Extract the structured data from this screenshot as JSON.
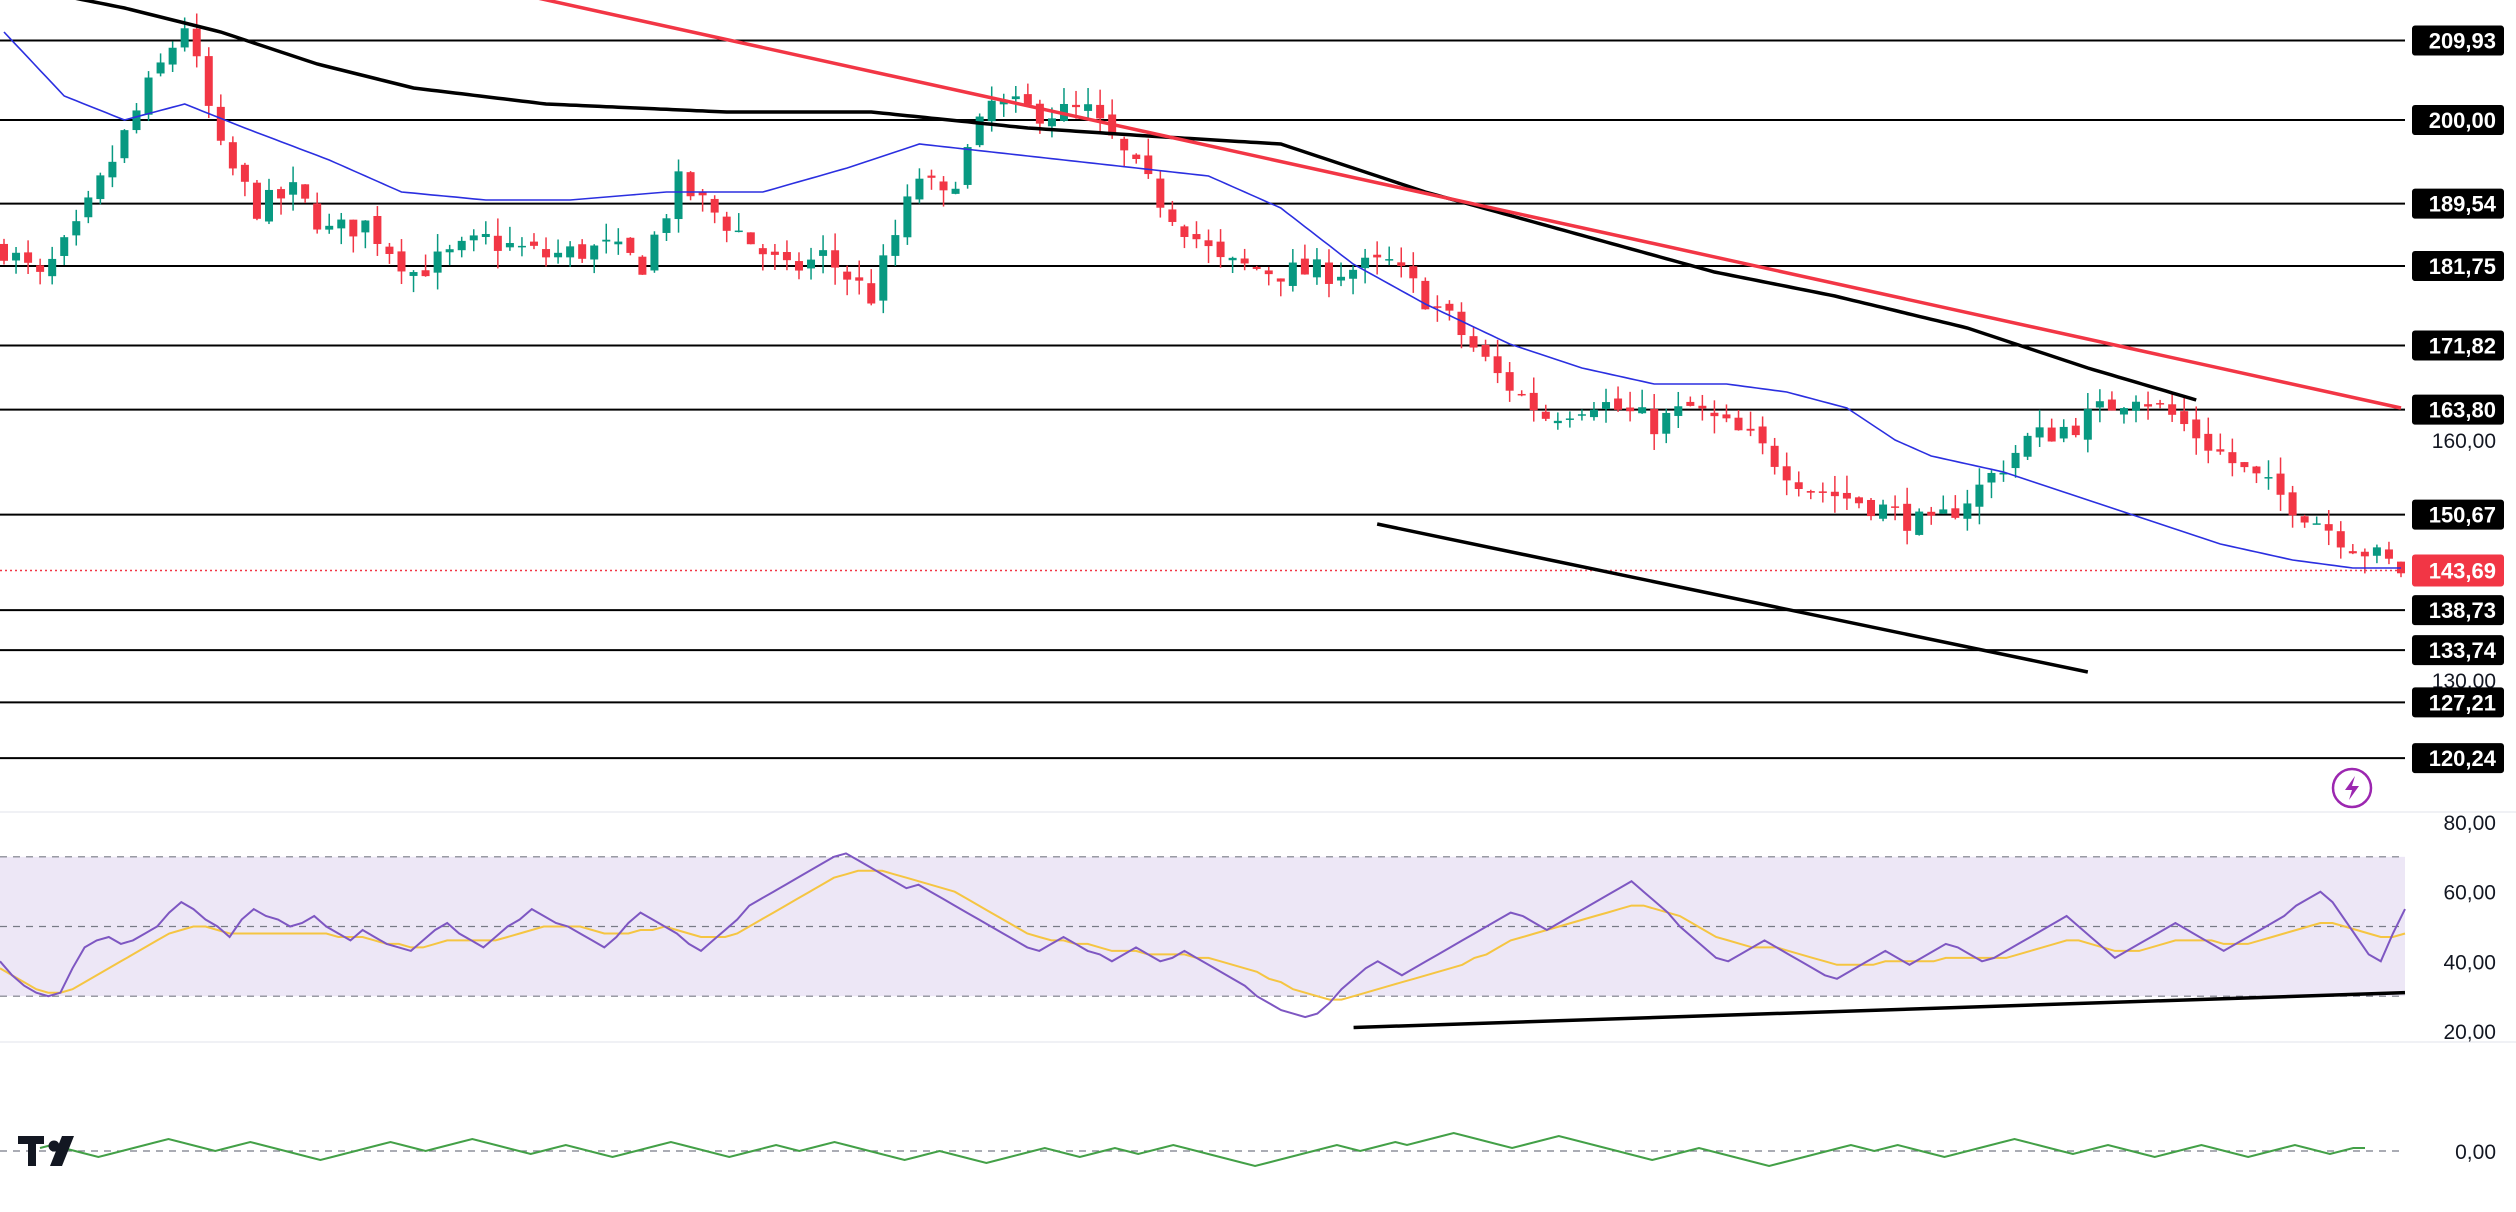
{
  "colors": {
    "up": "#089981",
    "down": "#f23645",
    "ema50": "#2b2fe0",
    "ema200": "#000000",
    "resistance": "#f23645",
    "hline": "#000000",
    "rsi_line": "#7e57c2",
    "rsi_ma": "#f5c542",
    "rsi_band": "#ede7f6",
    "osc_line": "#43a047",
    "current_price_bg": "#f23645",
    "label_bg": "#000000",
    "label_text": "#ffffff",
    "axis_text": "#131722"
  },
  "icons": {
    "logo": "tradingview-logo-icon",
    "alert": "lightning-icon"
  },
  "chart_data": [
    {
      "type": "candlestick",
      "panel": "price",
      "ylim": [
        115,
        215
      ],
      "x_count": 200,
      "price_ticks": [
        "160,00",
        "130,00",
        "80,00"
      ],
      "current_price": {
        "value": 143.69,
        "label": "143,69"
      },
      "levels": [
        {
          "value": 209.93,
          "label": "209,93"
        },
        {
          "value": 200.0,
          "label": "200,00"
        },
        {
          "value": 189.54,
          "label": "189,54"
        },
        {
          "value": 181.75,
          "label": "181,75"
        },
        {
          "value": 171.82,
          "label": "171,82"
        },
        {
          "value": 163.8,
          "label": "163,80"
        },
        {
          "value": 150.67,
          "label": "150,67"
        },
        {
          "value": 138.73,
          "label": "138,73"
        },
        {
          "value": 133.74,
          "label": "133,74"
        },
        {
          "value": 127.21,
          "label": "127,21"
        },
        {
          "value": 120.24,
          "label": "120,24"
        }
      ],
      "close_path": [
        [
          0,
          184
        ],
        [
          3,
          180
        ],
        [
          6,
          186
        ],
        [
          9,
          195
        ],
        [
          12,
          204
        ],
        [
          15,
          212
        ],
        [
          18,
          196
        ],
        [
          21,
          189
        ],
        [
          24,
          191
        ],
        [
          27,
          186
        ],
        [
          30,
          187
        ],
        [
          34,
          181
        ],
        [
          40,
          185
        ],
        [
          45,
          183
        ],
        [
          50,
          184
        ],
        [
          53,
          182
        ],
        [
          56,
          192
        ],
        [
          61,
          186
        ],
        [
          65,
          181
        ],
        [
          68,
          183
        ],
        [
          72,
          178
        ],
        [
          76,
          193
        ],
        [
          78,
          190
        ],
        [
          82,
          202
        ],
        [
          86,
          201
        ],
        [
          90,
          201
        ],
        [
          96,
          190
        ],
        [
          101,
          182
        ],
        [
          106,
          181
        ],
        [
          110,
          181
        ],
        [
          115,
          182
        ],
        [
          120,
          175
        ],
        [
          124,
          168
        ],
        [
          128,
          163
        ],
        [
          132,
          165
        ],
        [
          137,
          162
        ],
        [
          140,
          164
        ],
        [
          145,
          160
        ],
        [
          150,
          154
        ],
        [
          155,
          152
        ],
        [
          160,
          149
        ],
        [
          164,
          154
        ],
        [
          168,
          160
        ],
        [
          172,
          162
        ],
        [
          177,
          166
        ],
        [
          180,
          163
        ],
        [
          186,
          156
        ],
        [
          191,
          151
        ],
        [
          195,
          147
        ],
        [
          199,
          143.69
        ]
      ],
      "ema50_path": [
        [
          0,
          211
        ],
        [
          5,
          203
        ],
        [
          10,
          200
        ],
        [
          15,
          202
        ],
        [
          20,
          199
        ],
        [
          27,
          195
        ],
        [
          33,
          191
        ],
        [
          40,
          190
        ],
        [
          47,
          190
        ],
        [
          55,
          191
        ],
        [
          63,
          191
        ],
        [
          70,
          194
        ],
        [
          76,
          197
        ],
        [
          82,
          196
        ],
        [
          88,
          195
        ],
        [
          94,
          194
        ],
        [
          100,
          193
        ],
        [
          106,
          189
        ],
        [
          112,
          182
        ],
        [
          118,
          177
        ],
        [
          125,
          172
        ],
        [
          131,
          169
        ],
        [
          137,
          167
        ],
        [
          143,
          167
        ],
        [
          148,
          166
        ],
        [
          153,
          164
        ],
        [
          157,
          160
        ],
        [
          160,
          158
        ],
        [
          166,
          156
        ],
        [
          172,
          153
        ],
        [
          178,
          150
        ],
        [
          184,
          147
        ],
        [
          190,
          145
        ],
        [
          195,
          144
        ],
        [
          199,
          144
        ]
      ],
      "ema200_path": [
        [
          0,
          217
        ],
        [
          10,
          214
        ],
        [
          18,
          211
        ],
        [
          26,
          207
        ],
        [
          34,
          204
        ],
        [
          45,
          202
        ],
        [
          60,
          201
        ],
        [
          72,
          201
        ],
        [
          85,
          199
        ],
        [
          95,
          198
        ],
        [
          106,
          197
        ],
        [
          118,
          191
        ],
        [
          130,
          186
        ],
        [
          142,
          181
        ],
        [
          152,
          178
        ],
        [
          163,
          174
        ],
        [
          173,
          169
        ],
        [
          182,
          165
        ]
      ],
      "resistance_trend": [
        [
          36,
          218
        ],
        [
          199,
          164
        ]
      ],
      "support_trend": [
        [
          114,
          149.5
        ],
        [
          173,
          131
        ]
      ]
    },
    {
      "type": "line",
      "panel": "rsi",
      "ylim": [
        20,
        80
      ],
      "ticks": [
        "60,00",
        "40,00",
        "20,00"
      ],
      "band": [
        30,
        70
      ],
      "series": [
        {
          "key": "rsi",
          "values": [
            40,
            36,
            33,
            31,
            30,
            31,
            38,
            44,
            46,
            47,
            45,
            46,
            48,
            50,
            54,
            57,
            55,
            52,
            50,
            47,
            52,
            55,
            53,
            52,
            50,
            51,
            53,
            50,
            48,
            46,
            49,
            47,
            45,
            44,
            43,
            46,
            49,
            51,
            48,
            46,
            44,
            47,
            50,
            52,
            55,
            53,
            51,
            50,
            48,
            46,
            44,
            47,
            51,
            54,
            52,
            50,
            48,
            45,
            43,
            46,
            49,
            52,
            56,
            58,
            60,
            62,
            64,
            66,
            68,
            70,
            71,
            69,
            67,
            65,
            63,
            61,
            62,
            60,
            58,
            56,
            54,
            52,
            50,
            48,
            46,
            44,
            43,
            45,
            47,
            45,
            43,
            42,
            40,
            42,
            44,
            42,
            40,
            41,
            43,
            41,
            39,
            37,
            35,
            33,
            30,
            28,
            26,
            25,
            24,
            25,
            28,
            32,
            35,
            38,
            40,
            38,
            36,
            38,
            40,
            42,
            44,
            46,
            48,
            50,
            52,
            54,
            53,
            51,
            49,
            51,
            53,
            55,
            57,
            59,
            61,
            63,
            60,
            57,
            54,
            50,
            47,
            44,
            41,
            40,
            42,
            44,
            46,
            44,
            42,
            40,
            38,
            36,
            35,
            37,
            39,
            41,
            43,
            41,
            39,
            41,
            43,
            45,
            44,
            42,
            40,
            41,
            43,
            45,
            47,
            49,
            51,
            53,
            50,
            47,
            44,
            41,
            43,
            45,
            47,
            49,
            51,
            49,
            47,
            45,
            43,
            45,
            47,
            49,
            51,
            53,
            56,
            58,
            60,
            57,
            52,
            47,
            42,
            40,
            48,
            55
          ]
        },
        {
          "key": "rsi_ma",
          "values": [
            38,
            36,
            34,
            32,
            31,
            31,
            32,
            34,
            36,
            38,
            40,
            42,
            44,
            46,
            48,
            49,
            50,
            50,
            49,
            48,
            48,
            48,
            48,
            48,
            48,
            48,
            48,
            48,
            47,
            47,
            47,
            46,
            45,
            45,
            44,
            44,
            45,
            46,
            46,
            46,
            46,
            46,
            47,
            48,
            49,
            50,
            50,
            50,
            50,
            49,
            48,
            48,
            48,
            49,
            49,
            50,
            49,
            48,
            47,
            47,
            47,
            48,
            50,
            52,
            54,
            56,
            58,
            60,
            62,
            64,
            65,
            66,
            66,
            66,
            65,
            64,
            63,
            62,
            61,
            60,
            58,
            56,
            54,
            52,
            50,
            48,
            47,
            46,
            46,
            45,
            45,
            44,
            43,
            43,
            43,
            42,
            42,
            42,
            42,
            41,
            41,
            40,
            39,
            38,
            37,
            35,
            34,
            32,
            31,
            30,
            29,
            29,
            30,
            31,
            32,
            33,
            34,
            35,
            36,
            37,
            38,
            39,
            41,
            42,
            44,
            46,
            47,
            48,
            49,
            50,
            51,
            52,
            53,
            54,
            55,
            56,
            56,
            55,
            54,
            53,
            51,
            49,
            47,
            46,
            45,
            44,
            44,
            44,
            43,
            42,
            41,
            40,
            39,
            39,
            39,
            39,
            40,
            40,
            40,
            40,
            40,
            41,
            41,
            41,
            41,
            41,
            41,
            42,
            43,
            44,
            45,
            46,
            46,
            45,
            44,
            43,
            43,
            43,
            44,
            45,
            46,
            46,
            46,
            46,
            45,
            45,
            45,
            46,
            47,
            48,
            49,
            50,
            51,
            51,
            50,
            49,
            48,
            47,
            47,
            48
          ]
        }
      ],
      "trendline": [
        [
          112,
          21
        ],
        [
          199,
          31
        ]
      ]
    },
    {
      "type": "line",
      "panel": "oscillator",
      "ylim": [
        -1,
        1
      ],
      "ticks": [
        "0,00"
      ],
      "series": [
        {
          "key": "osc",
          "values": [
            0.1,
            0.2,
            0.1,
            0,
            -0.1,
            -0.2,
            -0.1,
            0,
            0.1,
            0.2,
            0.3,
            0.4,
            0.3,
            0.2,
            0.1,
            0,
            0.1,
            0.2,
            0.3,
            0.2,
            0.1,
            0,
            -0.1,
            -0.2,
            -0.3,
            -0.2,
            -0.1,
            0,
            0.1,
            0.2,
            0.3,
            0.2,
            0.1,
            0,
            0.1,
            0.2,
            0.3,
            0.4,
            0.3,
            0.2,
            0.1,
            0,
            -0.1,
            0,
            0.1,
            0.2,
            0.1,
            0,
            -0.1,
            -0.2,
            -0.1,
            0,
            0.1,
            0.2,
            0.3,
            0.2,
            0.1,
            0,
            -0.1,
            -0.2,
            -0.1,
            0,
            0.1,
            0.2,
            0.1,
            0,
            0.1,
            0.2,
            0.3,
            0.2,
            0.1,
            0,
            -0.1,
            -0.2,
            -0.3,
            -0.2,
            -0.1,
            0,
            -0.1,
            -0.2,
            -0.3,
            -0.4,
            -0.3,
            -0.2,
            -0.1,
            0,
            0.1,
            0,
            -0.1,
            -0.2,
            -0.1,
            0,
            0.1,
            0,
            -0.1,
            0,
            0.1,
            0.2,
            0.1,
            0,
            -0.1,
            -0.2,
            -0.3,
            -0.4,
            -0.5,
            -0.4,
            -0.3,
            -0.2,
            -0.1,
            0,
            0.1,
            0.2,
            0.1,
            0,
            0.1,
            0.2,
            0.3,
            0.2,
            0.3,
            0.4,
            0.5,
            0.6,
            0.5,
            0.4,
            0.3,
            0.2,
            0.1,
            0.2,
            0.3,
            0.4,
            0.5,
            0.4,
            0.3,
            0.2,
            0.1,
            0,
            -0.1,
            -0.2,
            -0.3,
            -0.2,
            -0.1,
            0,
            0.1,
            0,
            -0.1,
            -0.2,
            -0.3,
            -0.4,
            -0.5,
            -0.4,
            -0.3,
            -0.2,
            -0.1,
            0,
            0.1,
            0.2,
            0.1,
            0,
            0.1,
            0.2,
            0.1,
            0,
            -0.1,
            -0.2,
            -0.1,
            0,
            0.1,
            0.2,
            0.3,
            0.4,
            0.3,
            0.2,
            0.1,
            0,
            -0.1,
            0,
            0.1,
            0.2,
            0.1,
            0,
            -0.1,
            -0.2,
            -0.1,
            0,
            0.1,
            0.2,
            0.1,
            0,
            -0.1,
            -0.2,
            -0.1,
            0,
            0.1,
            0.2,
            0.1,
            0,
            -0.1,
            0,
            0.1,
            0.1
          ]
        }
      ]
    }
  ]
}
